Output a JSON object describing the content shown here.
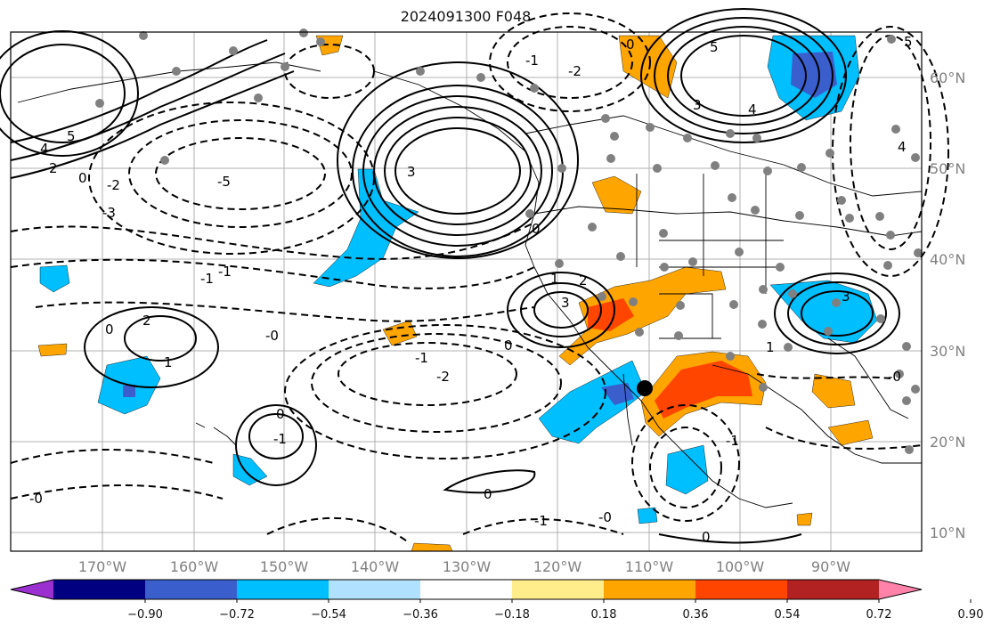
{
  "title": "2024091300 F048",
  "latitude_labels": [
    "60°N",
    "50°N",
    "40°N",
    "30°N",
    "20°N",
    "10°N"
  ],
  "longitude_labels": [
    "170°W",
    "160°W",
    "150°W",
    "140°W",
    "130°W",
    "120°W",
    "110°W",
    "100°W",
    "90°W"
  ],
  "colorbar": {
    "tick_labels": [
      "−0.90",
      "−0.72",
      "−0.54",
      "−0.36",
      "−0.18",
      "0.18",
      "0.36",
      "0.54",
      "0.72",
      "0.90"
    ],
    "colors": [
      "#9b30d0",
      "#000080",
      "#3a5fcd",
      "#00bfff",
      "#b0e2ff",
      "#ffffff",
      "#ffec8b",
      "#ffa500",
      "#ff4500",
      "#b22222",
      "#ff82ab"
    ]
  },
  "contour_labels": [
    "5",
    "4",
    "2",
    "0",
    "-1",
    "-2",
    "-3",
    "-5",
    "3",
    "4",
    "3",
    "5",
    "0",
    "-1",
    "-2",
    "-1",
    "2",
    "1",
    "0",
    "-0",
    "0",
    "-1",
    "-2",
    "0",
    "-1",
    "-0",
    "0",
    "-1",
    "-0",
    "3",
    "2",
    "1",
    "0",
    "0",
    "-1",
    "1",
    "-0",
    "3",
    "4",
    "5"
  ]
}
